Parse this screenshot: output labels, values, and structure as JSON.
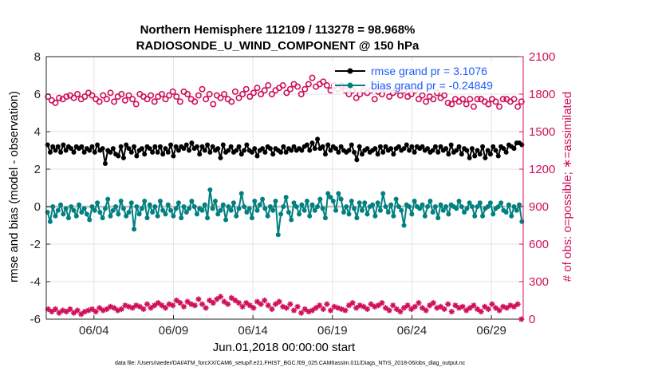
{
  "chart_data": {
    "type": "line",
    "title": "Northern Hemisphere 112109 / 113278 = 98.968%",
    "subtitle": "RADIOSONDE_U_WIND_COMPONENT @ 150 hPa",
    "xlabel": "Jun.01,2018 00:00:00 start",
    "ylabel": "rmse and bias (model - observation)",
    "y2label": "# of obs: o=possible; ∗=assimilated",
    "footer": "data file: /Users/raeder/DAI/ATM_forcXX/CAM6_setup/f.e21.FHIST_BGC.f09_025.CAM6assim.011/Diags_NTrS_2018-06/obs_diag_output.nc",
    "x_unit": "days since Jun.01,2018 00:00:00",
    "xlim": [
      0.5,
      30.5
    ],
    "ylim": [
      -6,
      8
    ],
    "y2lim": [
      0,
      2100
    ],
    "x_ticks": [
      3.5,
      8.5,
      13.5,
      18.5,
      23.5,
      28.5
    ],
    "x_tick_labels": [
      "06/04",
      "06/09",
      "06/14",
      "06/19",
      "06/24",
      "06/29"
    ],
    "y_ticks": [
      -6,
      -4,
      -2,
      0,
      2,
      4,
      6,
      8
    ],
    "y2_ticks": [
      0,
      300,
      600,
      900,
      1200,
      1500,
      1800,
      2100
    ],
    "grid": true,
    "legend_position": "top-right",
    "colors": {
      "rmse": "#000000",
      "bias": "#008080",
      "obs": "#d0105a",
      "zero_line": "#bfbfbf",
      "grid": "#e3e3e3",
      "legend_text": "#1a5cff"
    },
    "series": [
      {
        "name": "rmse grand pr = 3.1076",
        "axis": "left",
        "color": "#000000",
        "values": [
          3.3,
          2.9,
          3.2,
          3.0,
          3.2,
          2.9,
          3.3,
          3.0,
          3.2,
          3.1,
          2.9,
          3.2,
          3.1,
          3.2,
          2.9,
          3.1,
          3.0,
          3.2,
          2.9,
          3.3,
          3.0,
          3.1,
          2.3,
          3.0,
          2.9,
          3.1,
          2.8,
          2.7,
          3.2,
          2.6,
          3.3,
          3.1,
          2.9,
          3.2,
          2.7,
          3.0,
          3.1,
          2.8,
          3.2,
          3.1,
          2.9,
          3.2,
          2.9,
          3.2,
          2.8,
          3.1,
          2.9,
          3.3,
          2.7,
          3.2,
          3.0,
          3.2,
          3.1,
          3.3,
          3.0,
          3.4,
          3.1,
          3.2,
          2.8,
          3.2,
          3.0,
          3.3,
          2.9,
          3.2,
          3.0,
          3.1,
          2.6,
          3.3,
          2.9,
          3.0,
          3.2,
          2.9,
          3.0,
          3.2,
          2.8,
          3.0,
          3.3,
          3.0,
          2.9,
          3.1,
          2.7,
          3.0,
          3.1,
          2.9,
          3.2,
          3.1,
          2.8,
          3.1,
          3.0,
          2.9,
          3.2,
          2.9,
          3.1,
          3.0,
          3.2,
          3.0,
          3.1,
          3.0,
          3.2,
          3.3,
          3.0,
          3.4,
          3.1,
          3.6,
          3.1,
          3.2,
          2.8,
          3.3,
          3.0,
          3.2,
          3.1,
          2.9,
          3.2,
          3.0,
          2.9,
          3.0,
          3.3,
          2.9,
          2.5,
          3.2,
          2.8,
          3.0,
          3.1,
          2.9,
          3.0,
          3.1,
          2.8,
          3.2,
          2.9,
          3.2,
          3.0,
          3.1,
          2.8,
          3.1,
          3.2,
          3.0,
          3.1,
          3.3,
          3.0,
          3.2,
          2.9,
          3.2,
          3.1,
          3.2,
          3.0,
          3.1,
          2.9,
          3.0,
          3.2,
          2.9,
          3.2,
          3.0,
          3.1,
          2.8,
          3.3,
          2.9,
          3.0,
          3.2,
          2.8,
          3.1,
          3.0,
          2.6,
          3.1,
          2.7,
          3.0,
          2.8,
          3.2,
          2.6,
          3.0,
          2.8,
          3.2,
          3.0,
          2.7,
          3.2,
          3.1,
          2.9,
          3.3,
          3.2,
          3.1,
          3.4,
          3.4,
          3.3
        ]
      },
      {
        "name": "bias grand pr = -0.24849",
        "axis": "left",
        "color": "#008080",
        "values": [
          -0.3,
          -0.8,
          0.0,
          -0.5,
          -0.2,
          0.1,
          -0.4,
          -0.1,
          -0.6,
          0.0,
          -0.2,
          -0.5,
          0.1,
          -0.3,
          -0.1,
          -0.4,
          -0.7,
          0.0,
          -0.2,
          0.2,
          -0.3,
          -0.6,
          -0.1,
          0.4,
          -0.5,
          -0.2,
          0.0,
          -0.4,
          0.3,
          -0.1,
          -0.5,
          -0.3,
          0.2,
          -1.2,
          0.0,
          -0.4,
          -0.1,
          0.3,
          -0.6,
          0.1,
          -0.3,
          0.0,
          -0.5,
          0.3,
          -0.2,
          -0.4,
          0.1,
          -0.2,
          -0.5,
          -0.1,
          0.2,
          -0.6,
          0.0,
          -0.3,
          -0.1,
          0.3,
          0.0,
          -0.4,
          -0.1,
          -0.2,
          0.1,
          -0.6,
          0.9,
          -0.1,
          0.3,
          -0.4,
          -0.2,
          0.1,
          -0.7,
          0.0,
          -0.2,
          0.2,
          -0.5,
          -0.1,
          0.7,
          0.0,
          -0.3,
          -0.1,
          -0.6,
          0.3,
          -0.2,
          0.1,
          0.4,
          -0.1,
          -0.5,
          0.0,
          -0.2,
          0.3,
          -1.5,
          -0.4,
          0.0,
          0.5,
          -0.3,
          -0.7,
          0.2,
          0.0,
          -0.4,
          0.1,
          -0.2,
          0.3,
          -0.5,
          0.1,
          -0.2,
          0.0,
          0.4,
          -0.1,
          -0.6,
          0.7,
          0.5,
          0.3,
          -0.2,
          0.7,
          0.4,
          -0.3,
          0.0,
          -0.4,
          0.3,
          -0.1,
          -0.6,
          0.2,
          -0.2,
          0.2,
          -0.4,
          0.0,
          0.1,
          -0.5,
          0.2,
          -0.2,
          0.7,
          0.0,
          -0.3,
          0.1,
          -0.5,
          0.4,
          0.0,
          -0.2,
          -1.0,
          0.1,
          0.0,
          -0.4,
          0.3,
          0.0,
          -0.1,
          0.1,
          -0.5,
          0.0,
          0.3,
          -0.3,
          0.0,
          -0.6,
          0.1,
          -0.2,
          0.0,
          -0.4,
          0.1,
          0.0,
          -0.1,
          0.3,
          0.0,
          -0.3,
          -0.1,
          0.2,
          0.0,
          -0.5,
          0.0,
          0.2,
          -0.5,
          -0.1,
          0.0,
          0.2,
          -0.4,
          -0.1,
          0.0,
          0.2,
          -0.2,
          -0.3,
          0.1,
          -0.5,
          0.0,
          -0.2,
          0.1,
          -0.8
        ]
      },
      {
        "name": "possible",
        "axis": "right",
        "marker": "o",
        "color": "#d0105a",
        "values": [
          1780,
          1750,
          1730,
          1770,
          1760,
          1780,
          1790,
          1770,
          1800,
          1760,
          1780,
          1810,
          1790,
          1760,
          1740,
          1790,
          1760,
          1810,
          1740,
          1780,
          1800,
          1750,
          1790,
          1760,
          1720,
          1800,
          1780,
          1760,
          1790,
          1740,
          1780,
          1800,
          1760,
          1790,
          1820,
          1780,
          1740,
          1820,
          1800,
          1760,
          1740,
          1790,
          1840,
          1760,
          1800,
          1720,
          1790,
          1770,
          1800,
          1760,
          1740,
          1820,
          1770,
          1800,
          1840,
          1780,
          1810,
          1850,
          1800,
          1830,
          1870,
          1800,
          1830,
          1850,
          1870,
          1810,
          1840,
          1880,
          1860,
          1800,
          1840,
          1880,
          1930,
          1860,
          1880,
          1900,
          1870,
          1830,
          1870,
          1840,
          1870,
          1830,
          1800,
          1830,
          1770,
          1800,
          1830,
          1810,
          1830,
          1760,
          1820,
          1800,
          1840,
          1780,
          1810,
          1830,
          1790,
          1830,
          1780,
          1800,
          1830,
          1760,
          1790,
          1740,
          1780,
          1760,
          1810,
          1770,
          1790,
          1730,
          1720,
          1760,
          1740,
          1760,
          1720,
          1760,
          1700,
          1760,
          1760,
          1740,
          1720,
          1760,
          1740,
          1700,
          1760,
          1760,
          1740,
          1760,
          1700,
          1740
        ]
      },
      {
        "name": "assimilated",
        "axis": "right",
        "marker": "*",
        "color": "#d0105a",
        "values": [
          80,
          60,
          80,
          50,
          70,
          60,
          80,
          50,
          70,
          40,
          60,
          70,
          80,
          60,
          90,
          70,
          80,
          100,
          90,
          70,
          80,
          110,
          100,
          90,
          110,
          100,
          80,
          120,
          90,
          110,
          130,
          110,
          90,
          120,
          110,
          150,
          130,
          100,
          140,
          120,
          110,
          160,
          120,
          90,
          150,
          130,
          160,
          180,
          140,
          120,
          170,
          150,
          130,
          100,
          130,
          110,
          90,
          140,
          120,
          150,
          110,
          80,
          120,
          140,
          100,
          90,
          120,
          70,
          100,
          50,
          80,
          60,
          70,
          90,
          110,
          80,
          120,
          70,
          100,
          90,
          80,
          70,
          110,
          130,
          90,
          110,
          100,
          80,
          120,
          100,
          110,
          130,
          90,
          70,
          110,
          80,
          60,
          90,
          110,
          80,
          100,
          130,
          90,
          70,
          110,
          130,
          90,
          100,
          80,
          120,
          60,
          110,
          90,
          100,
          70,
          90,
          110,
          80,
          60,
          100,
          80,
          120,
          90,
          70,
          100,
          90,
          110,
          100,
          120,
          0
        ]
      }
    ]
  }
}
